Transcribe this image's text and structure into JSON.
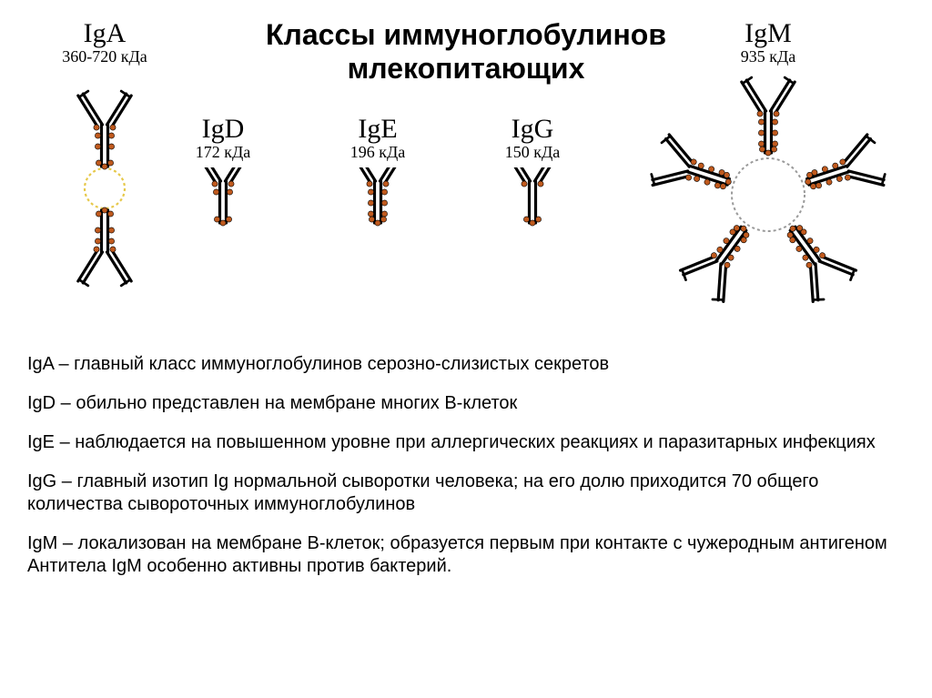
{
  "title": "Классы иммуноглобулинов млекопитающих",
  "colors": {
    "stroke": "#000000",
    "dot": "#c05a1e",
    "dotStroke": "#000000",
    "dashRingIgA": "#e6c84a",
    "dashRingIgM": "#9a9a9a",
    "background": "#ffffff"
  },
  "sizes": {
    "title_fontsize": 32,
    "name_fontsize": 30,
    "weight_fontsize": 18,
    "desc_fontsize": 20
  },
  "igs": {
    "IgA": {
      "name": "IgA",
      "weight": "360-720 кДа"
    },
    "IgD": {
      "name": "IgD",
      "weight": "172 кДа"
    },
    "IgE": {
      "name": "IgE",
      "weight": "196 кДа"
    },
    "IgG": {
      "name": "IgG",
      "weight": "150 кДа"
    },
    "IgM": {
      "name": "IgM",
      "weight": "935 кДа"
    }
  },
  "shapes": {
    "monomer": {
      "armAngleDeg": 32,
      "armLength": 40,
      "stemLength": 46,
      "strokeWidth": 3.2,
      "innerGap": 5,
      "dotRadius": 3.1
    },
    "IgA": {
      "ringRadius": 22,
      "dashArray": "3,3"
    },
    "IgM": {
      "ringRadius": 40,
      "dashArray": "3,3"
    }
  },
  "descriptions": {
    "IgA": "IgA – главный класс иммуноглобулинов серозно-слизистых секретов",
    "IgD": "IgD – обильно представлен на мембране многих В-клеток",
    "IgE": "IgE – наблюдается на повышенном уровне при аллергических реакциях и паразитарных инфекциях",
    "IgG": "IgG – главный изотип Ig нормальной сыворотки человека; на его долю приходится 70 общего количества сывороточных иммуноглобулинов",
    "IgM1": "IgM –  локализован на мембране В-клеток; образуется первым при контакте с  чужеродным антигеном",
    "IgM2": "Антитела IgM особенно активны против бактерий."
  }
}
